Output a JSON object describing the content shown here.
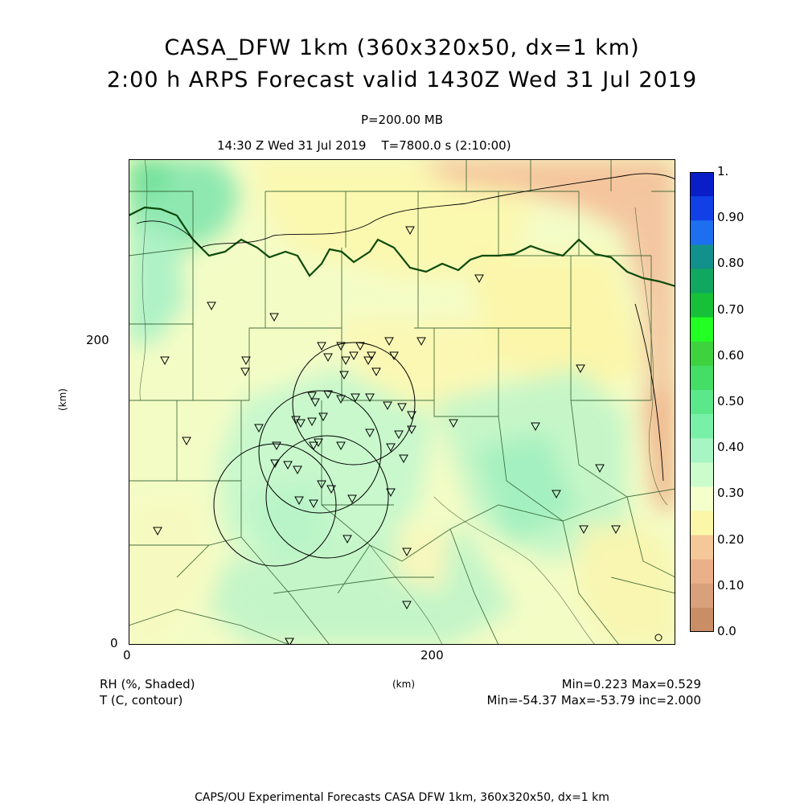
{
  "title": {
    "line1": "CASA_DFW 1km (360x320x50, dx=1 km)",
    "line2": "2:00 h ARPS Forecast valid 1430Z Wed 31 Jul 2019"
  },
  "subtitle": {
    "level": "P=200.00 MB",
    "time": "14:30 Z Wed 31 Jul 2019",
    "model_time": "T=7800.0 s (2:10:00)"
  },
  "axes": {
    "x_ticks": [
      "0",
      "200"
    ],
    "y_ticks": [
      "0",
      "200"
    ],
    "x_unit": "(km)",
    "y_unit": "(km)"
  },
  "legend_left": {
    "shaded": "RH (%, Shaded)",
    "contour": "T (C, contour)"
  },
  "stats": {
    "shaded": "Min=0.223 Max=0.529",
    "contour": "Min=-54.37 Max=-53.79 inc=2.000"
  },
  "colorbar": {
    "labels": [
      "1.",
      "0.90",
      "0.80",
      "0.70",
      "0.60",
      "0.50",
      "0.40",
      "0.30",
      "0.20",
      "0.10",
      "0.0"
    ],
    "colors": [
      "#0a1ec8",
      "#1040e6",
      "#1e6ef0",
      "#12908c",
      "#10a860",
      "#16c038",
      "#22ff22",
      "#3ed33e",
      "#44dd66",
      "#5ae88a",
      "#78f0a8",
      "#a6f5c2",
      "#ccfccc",
      "#f5ffcc",
      "#fbf7a8",
      "#f5c89a",
      "#e9b08a",
      "#d9a07c",
      "#c98e66"
    ]
  },
  "footer": "CAPS/OU Experimental Forecasts   CASA DFW 1km, 360x320x50, dx=1 km"
}
